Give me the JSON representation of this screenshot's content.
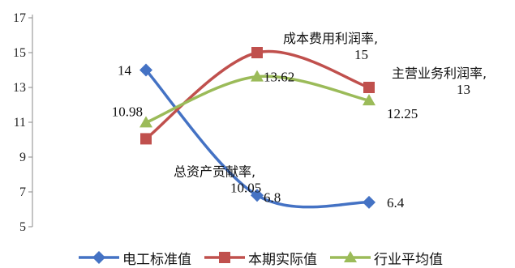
{
  "chart_data": {
    "type": "line",
    "categories": [
      "电工标准值",
      "本期实际值",
      "行业平均值"
    ],
    "ylim": [
      5,
      17
    ],
    "yticks": [
      5,
      7,
      9,
      11,
      13,
      15,
      17
    ],
    "grid": false,
    "legend_position": "bottom",
    "series": [
      {
        "name": "电工标准值",
        "color": "#4472C4",
        "marker": "diamond",
        "values": [
          14,
          6.8,
          6.4
        ]
      },
      {
        "name": "本期实际值",
        "color": "#C0504D",
        "marker": "square",
        "values": [
          10.05,
          15,
          13
        ]
      },
      {
        "name": "行业平均值",
        "color": "#9BBB59",
        "marker": "triangle",
        "values": [
          10.98,
          13.62,
          12.25
        ]
      }
    ],
    "data_labels": [
      {
        "text": "14",
        "series": 0,
        "point": 0,
        "anchor": "end",
        "dx": -18,
        "dy": 6
      },
      {
        "text": "6.8",
        "series": 0,
        "point": 1,
        "anchor": "start",
        "dx": 8,
        "dy": 8
      },
      {
        "text": "6.4",
        "series": 0,
        "point": 2,
        "anchor": "start",
        "dx": 22,
        "dy": 6
      },
      {
        "text": "10.98",
        "series": 2,
        "point": 0,
        "anchor": "end",
        "dx": -4,
        "dy": -8
      },
      {
        "text": "13.62",
        "series": 2,
        "point": 1,
        "anchor": "start",
        "dx": 8,
        "dy": 6
      },
      {
        "text": "12.25",
        "series": 2,
        "point": 2,
        "anchor": "start",
        "dx": 22,
        "dy": 22
      }
    ],
    "annotations": [
      {
        "lines": [
          "成本费用利润率,",
          "15"
        ],
        "series": 1,
        "point": 1
      },
      {
        "lines": [
          "主营业务利润率,",
          "13"
        ],
        "series": 1,
        "point": 2
      },
      {
        "lines": [
          "总资产贡献率,",
          "10.05"
        ],
        "series": 1,
        "point": 0
      }
    ]
  }
}
